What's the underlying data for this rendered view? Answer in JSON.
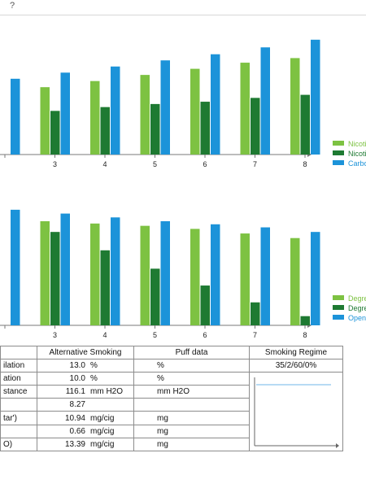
{
  "window": {
    "help_mark": "?"
  },
  "colors": {
    "light_green": "#7dc242",
    "dark_green": "#1e7a32",
    "blue": "#1c93d9"
  },
  "chart_data": [
    {
      "type": "bar",
      "categories": [
        "",
        "3",
        "4",
        "5",
        "6",
        "7",
        "8"
      ],
      "series": [
        {
          "name": "Nicoti",
          "color": "#7dc242",
          "values": [
            null,
            88,
            96,
            104,
            112,
            120,
            126
          ]
        },
        {
          "name": "Nicoti",
          "color": "#1e7a32",
          "values": [
            null,
            57,
            62,
            66,
            69,
            74,
            78
          ]
        },
        {
          "name": "Carbo",
          "color": "#1c93d9",
          "values": [
            99,
            107,
            115,
            123,
            131,
            140,
            150
          ]
        }
      ],
      "ylim": [
        0,
        170
      ],
      "grid": false,
      "legend": "right"
    },
    {
      "type": "bar",
      "categories": [
        "",
        "3",
        "4",
        "5",
        "6",
        "7",
        "8"
      ],
      "series": [
        {
          "name": "Degre",
          "color": "#7dc242",
          "values": [
            null,
            136,
            133,
            130,
            126,
            120,
            114
          ]
        },
        {
          "name": "Degre",
          "color": "#1e7a32",
          "values": [
            null,
            122,
            98,
            74,
            52,
            30,
            12
          ]
        },
        {
          "name": "Open",
          "color": "#1c93d9",
          "values": [
            151,
            146,
            141,
            136,
            132,
            128,
            122
          ]
        }
      ],
      "ylim": [
        0,
        170
      ],
      "grid": false,
      "legend": "right"
    }
  ],
  "table": {
    "headers": {
      "col2": "Alternative Smoking",
      "col3": "Puff data",
      "col4": "Smoking Regime"
    },
    "regime_value": "35/2/60/0%",
    "rows": [
      {
        "label": "ilation",
        "value": "13.0",
        "unit": "%",
        "puff_unit": "%"
      },
      {
        "label": "ation",
        "value": "10.0",
        "unit": "%",
        "puff_unit": "%"
      },
      {
        "label": "stance",
        "value": "116.1",
        "unit": "mm H2O",
        "puff_unit": "mm H2O"
      },
      {
        "label": "",
        "value": "8.27",
        "unit": "",
        "puff_unit": ""
      },
      {
        "label": "tar')",
        "value": "10.94",
        "unit": "mg/cig",
        "puff_unit": "mg"
      },
      {
        "label": "",
        "value": "0.66",
        "unit": "mg/cig",
        "puff_unit": "mg"
      },
      {
        "label": "O)",
        "value": "13.39",
        "unit": "mg/cig",
        "puff_unit": "mg"
      }
    ]
  }
}
